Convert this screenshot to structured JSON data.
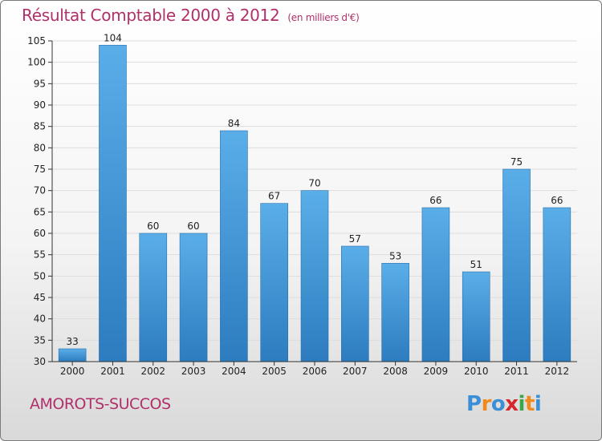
{
  "title": "Résultat Comptable 2000 à 2012",
  "unit": "(en milliers d'€)",
  "town": "AMOROTS-SUCCOS",
  "logo": {
    "letters": [
      "P",
      "r",
      "o",
      "x",
      "i",
      "t",
      "i"
    ],
    "colors": [
      "#3a8fd6",
      "#f08a1c",
      "#3a8fd6",
      "#d8262d",
      "#3aa84a",
      "#f08a1c",
      "#3a8fd6"
    ]
  },
  "colors": {
    "title": "#b0306a",
    "bar_top": "#5aaee8",
    "bar_bottom": "#2c7cbf",
    "axis": "#333333",
    "grid": "#dddddd"
  },
  "chart_data": {
    "type": "bar",
    "title": "Résultat Comptable 2000 à 2012",
    "ylabel": "en milliers d'€",
    "categories": [
      "2000",
      "2001",
      "2002",
      "2003",
      "2004",
      "2005",
      "2006",
      "2007",
      "2008",
      "2009",
      "2010",
      "2011",
      "2012"
    ],
    "values": [
      33,
      104,
      60,
      60,
      84,
      67,
      70,
      57,
      53,
      66,
      51,
      75,
      66
    ],
    "ylim": [
      30,
      105
    ],
    "yticks": [
      30,
      35,
      40,
      45,
      50,
      55,
      60,
      65,
      70,
      75,
      80,
      85,
      90,
      95,
      100,
      105
    ]
  }
}
